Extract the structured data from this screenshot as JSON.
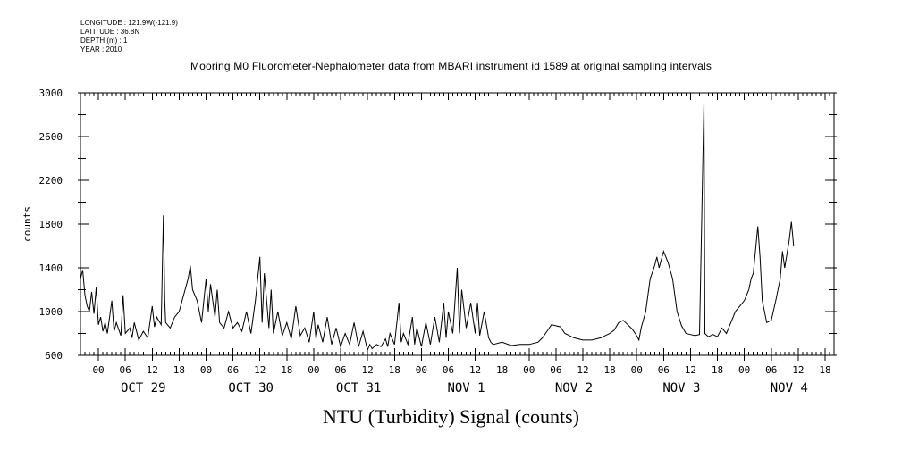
{
  "header": {
    "meta_lines": [
      "LONGITUDE : 121.9W(-121.9)",
      "LATITUDE : 36.8N",
      "DEPTH (m) : 1",
      "YEAR : 2010"
    ],
    "title": "Mooring M0 Fluorometer-Nephalometer data from MBARI instrument id 1589 at original sampling intervals"
  },
  "chart_data": {
    "type": "line",
    "title": "Mooring M0 Fluorometer-Nephalometer data from MBARI instrument id 1589 at original sampling intervals",
    "xlabel": "NTU (Turbidity) Signal (counts)",
    "ylabel": "counts",
    "ylim": [
      600,
      3000
    ],
    "yticks": [
      600,
      1000,
      1400,
      1800,
      2200,
      2600,
      3000
    ],
    "xlim_hours": [
      -4,
      164
    ],
    "hour_tick_labels": [
      "00",
      "06",
      "12",
      "18",
      "00",
      "06",
      "12",
      "18",
      "00",
      "06",
      "12",
      "18",
      "00",
      "06",
      "12",
      "18",
      "00",
      "06",
      "12",
      "18",
      "00",
      "06",
      "12",
      "18",
      "00",
      "06",
      "12",
      "18"
    ],
    "day_labels": [
      "OCT 29",
      "OCT 30",
      "OCT 31",
      "NOV 1",
      "NOV 2",
      "NOV 3",
      "NOV 4"
    ],
    "grid": false,
    "line_color": "#000000",
    "series": [
      {
        "points": [
          [
            -4,
            1300
          ],
          [
            -3.5,
            1380
          ],
          [
            -3,
            1150
          ],
          [
            -2.5,
            1050
          ],
          [
            -2,
            1000
          ],
          [
            -1.5,
            1180
          ],
          [
            -1,
            980
          ],
          [
            -0.5,
            1220
          ],
          [
            0,
            880
          ],
          [
            0.5,
            950
          ],
          [
            1,
            820
          ],
          [
            1.5,
            900
          ],
          [
            2,
            800
          ],
          [
            3,
            1100
          ],
          [
            3.5,
            820
          ],
          [
            4,
            900
          ],
          [
            5,
            780
          ],
          [
            5.5,
            1150
          ],
          [
            6,
            800
          ],
          [
            7,
            850
          ],
          [
            7.5,
            760
          ],
          [
            8,
            900
          ],
          [
            9,
            740
          ],
          [
            10,
            820
          ],
          [
            11,
            760
          ],
          [
            12,
            1050
          ],
          [
            12.5,
            860
          ],
          [
            13,
            950
          ],
          [
            14,
            880
          ],
          [
            14.5,
            1880
          ],
          [
            14.8,
            1100
          ],
          [
            15,
            900
          ],
          [
            16,
            850
          ],
          [
            17,
            950
          ],
          [
            18,
            1000
          ],
          [
            19,
            1150
          ],
          [
            20,
            1300
          ],
          [
            20.5,
            1420
          ],
          [
            21,
            1200
          ],
          [
            22,
            1100
          ],
          [
            23,
            900
          ],
          [
            24,
            1300
          ],
          [
            24.5,
            1000
          ],
          [
            25,
            1250
          ],
          [
            26,
            950
          ],
          [
            26.5,
            1200
          ],
          [
            27,
            900
          ],
          [
            28,
            850
          ],
          [
            29,
            1000
          ],
          [
            30,
            850
          ],
          [
            31,
            900
          ],
          [
            32,
            820
          ],
          [
            33,
            1000
          ],
          [
            34,
            800
          ],
          [
            35,
            1100
          ],
          [
            36,
            1500
          ],
          [
            36.5,
            900
          ],
          [
            37,
            1350
          ],
          [
            38,
            850
          ],
          [
            38.5,
            1200
          ],
          [
            39,
            800
          ],
          [
            40,
            1000
          ],
          [
            41,
            780
          ],
          [
            42,
            900
          ],
          [
            43,
            750
          ],
          [
            44,
            1050
          ],
          [
            45,
            780
          ],
          [
            46,
            850
          ],
          [
            47,
            720
          ],
          [
            48,
            1000
          ],
          [
            48.5,
            750
          ],
          [
            49,
            880
          ],
          [
            50,
            720
          ],
          [
            51,
            950
          ],
          [
            52,
            700
          ],
          [
            53,
            850
          ],
          [
            54,
            680
          ],
          [
            55,
            800
          ],
          [
            56,
            700
          ],
          [
            57,
            900
          ],
          [
            58,
            680
          ],
          [
            59,
            820
          ],
          [
            60,
            650
          ],
          [
            60.5,
            700
          ],
          [
            61,
            660
          ],
          [
            62,
            700
          ],
          [
            63,
            680
          ],
          [
            64,
            750
          ],
          [
            64.5,
            680
          ],
          [
            65,
            800
          ],
          [
            66,
            700
          ],
          [
            67,
            1080
          ],
          [
            67.5,
            720
          ],
          [
            68,
            800
          ],
          [
            69,
            700
          ],
          [
            70,
            950
          ],
          [
            70.5,
            700
          ],
          [
            71,
            850
          ],
          [
            72,
            680
          ],
          [
            73,
            900
          ],
          [
            74,
            700
          ],
          [
            75,
            950
          ],
          [
            76,
            720
          ],
          [
            77,
            1080
          ],
          [
            77.5,
            760
          ],
          [
            78,
            1000
          ],
          [
            79,
            800
          ],
          [
            80,
            1400
          ],
          [
            80.5,
            800
          ],
          [
            81,
            1200
          ],
          [
            82,
            850
          ],
          [
            83,
            1080
          ],
          [
            84,
            800
          ],
          [
            84.5,
            1080
          ],
          [
            85,
            780
          ],
          [
            86,
            1000
          ],
          [
            87,
            760
          ],
          [
            87.5,
            720
          ],
          [
            88,
            700
          ],
          [
            90,
            720
          ],
          [
            92,
            690
          ],
          [
            94,
            700
          ],
          [
            96,
            700
          ],
          [
            98,
            720
          ],
          [
            99,
            760
          ],
          [
            100,
            820
          ],
          [
            101,
            880
          ],
          [
            102,
            870
          ],
          [
            103,
            860
          ],
          [
            104,
            800
          ],
          [
            105,
            780
          ],
          [
            106,
            760
          ],
          [
            108,
            740
          ],
          [
            110,
            740
          ],
          [
            112,
            760
          ],
          [
            114,
            800
          ],
          [
            115,
            830
          ],
          [
            116,
            900
          ],
          [
            117,
            920
          ],
          [
            118,
            880
          ],
          [
            119,
            840
          ],
          [
            120,
            780
          ],
          [
            120.5,
            740
          ],
          [
            121,
            850
          ],
          [
            122,
            1000
          ],
          [
            123,
            1300
          ],
          [
            124,
            1420
          ],
          [
            124.5,
            1500
          ],
          [
            125,
            1400
          ],
          [
            126,
            1550
          ],
          [
            127,
            1450
          ],
          [
            128,
            1300
          ],
          [
            129,
            1000
          ],
          [
            130,
            870
          ],
          [
            131,
            800
          ],
          [
            132,
            790
          ],
          [
            133,
            780
          ],
          [
            134,
            790
          ],
          [
            135,
            2920
          ],
          [
            135.2,
            800
          ],
          [
            136,
            770
          ],
          [
            137,
            790
          ],
          [
            138,
            770
          ],
          [
            139,
            850
          ],
          [
            140,
            800
          ],
          [
            141,
            900
          ],
          [
            142,
            1000
          ],
          [
            143,
            1050
          ],
          [
            144,
            1100
          ],
          [
            145,
            1200
          ],
          [
            145.5,
            1300
          ],
          [
            146,
            1350
          ],
          [
            147,
            1780
          ],
          [
            147.5,
            1500
          ],
          [
            148,
            1100
          ],
          [
            149,
            900
          ],
          [
            150,
            920
          ],
          [
            151,
            1100
          ],
          [
            152,
            1300
          ],
          [
            152.5,
            1550
          ],
          [
            153,
            1400
          ],
          [
            154,
            1650
          ],
          [
            154.5,
            1820
          ],
          [
            155,
            1600
          ]
        ]
      }
    ]
  }
}
